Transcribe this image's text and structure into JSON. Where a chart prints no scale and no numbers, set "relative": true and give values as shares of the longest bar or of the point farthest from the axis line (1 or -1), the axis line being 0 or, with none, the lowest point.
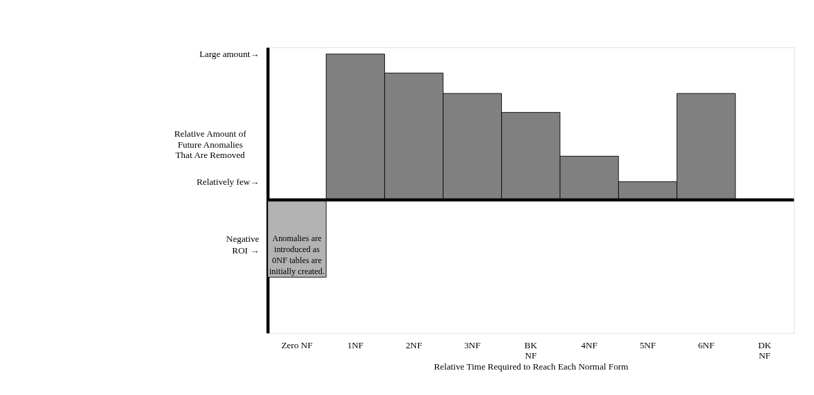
{
  "chart_data": {
    "type": "bar",
    "relative": true,
    "categories": [
      "Zero NF",
      "1NF",
      "2NF",
      "3NF",
      "BK\nNF",
      "4NF",
      "5NF",
      "6NF",
      "DK\nNF"
    ],
    "values": [
      -0.53,
      1.0,
      0.87,
      0.73,
      0.6,
      0.3,
      0.125,
      0.73,
      null
    ],
    "colors": [
      "#b3b3b3",
      "#808080",
      "#808080",
      "#808080",
      "#808080",
      "#808080",
      "#808080",
      "#808080",
      "#808080"
    ],
    "xlabel": "Relative Time Required to Reach Each Normal Form",
    "ylabel": "Relative Amount of\nFuture Anomalies\nThat Are Removed",
    "annotations": [
      "Large amount→",
      "Relatively few→",
      "Negative\nROI →",
      "Anomalies are\nintroduced as\n0NF tables are\ninitially created."
    ]
  }
}
